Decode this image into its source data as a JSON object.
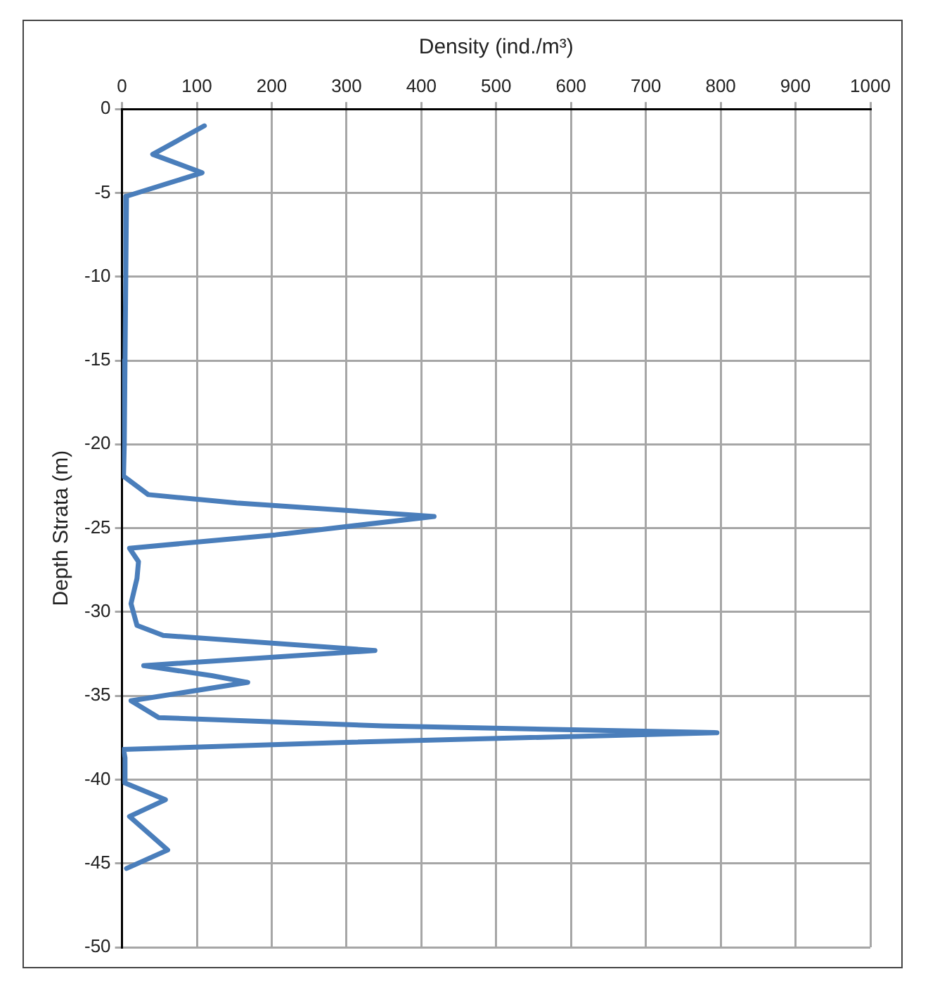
{
  "chart_data": {
    "type": "line",
    "xlabel": "Density (ind./m³)",
    "ylabel": "Depth Strata (m)",
    "xlim": [
      0,
      1000
    ],
    "xticks": [
      0,
      100,
      200,
      300,
      400,
      500,
      600,
      700,
      800,
      900,
      1000
    ],
    "ylim": [
      -50,
      0
    ],
    "yticks": [
      -50,
      -45,
      -40,
      -35,
      -30,
      -25,
      -20,
      -15,
      -10,
      -5,
      0
    ],
    "grid": true,
    "legend": false,
    "marker": "none",
    "line_style": "solid",
    "series": [
      {
        "color": "#4a7ebb",
        "x": [
          110,
          41,
          107,
          6,
          5,
          4,
          3,
          2,
          35,
          153,
          417,
          205,
          10,
          22,
          20,
          12,
          20,
          55,
          338,
          29,
          120,
          168,
          12,
          49,
          348,
          795,
          283,
          2,
          4,
          4,
          58,
          10,
          61,
          6
        ],
        "values": [
          -1,
          -2.7,
          -3.8,
          -5.2,
          -10,
          -15,
          -20,
          -21.9,
          -23,
          -23.5,
          -24.3,
          -25.4,
          -26.2,
          -27,
          -28,
          -29.5,
          -30.8,
          -31.4,
          -32.3,
          -33.2,
          -33.8,
          -34.2,
          -35.3,
          -36.3,
          -36.8,
          -37.2,
          -37.8,
          -38.2,
          -38.7,
          -40.2,
          -41.2,
          -42.2,
          -44.2,
          -45.3
        ]
      }
    ]
  }
}
